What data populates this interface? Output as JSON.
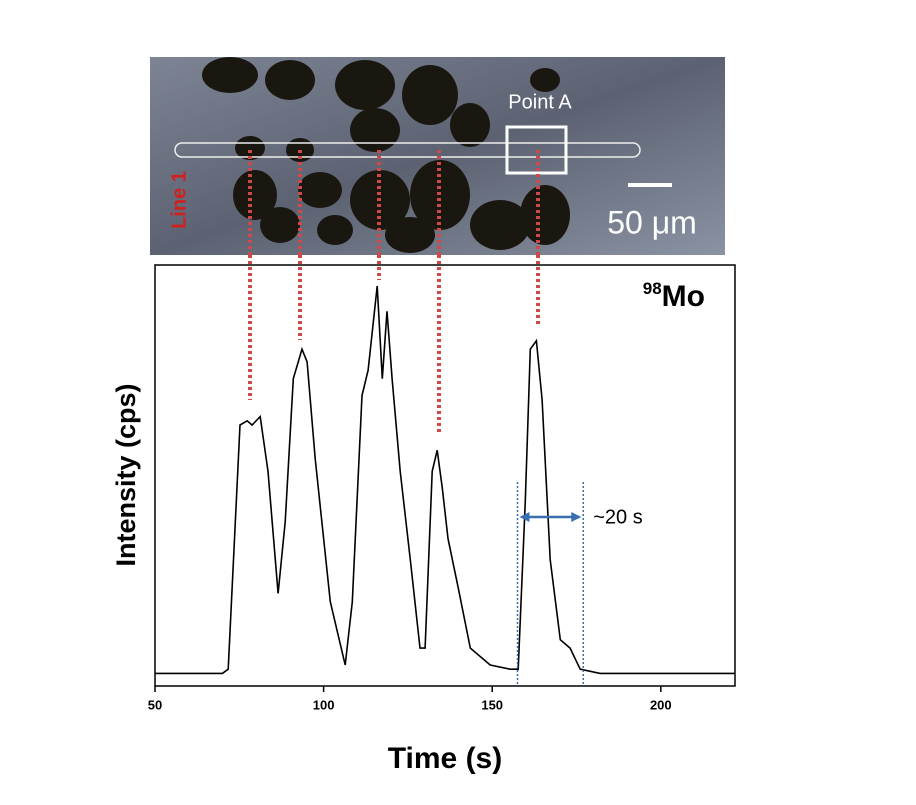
{
  "micrograph": {
    "point_label": "Point A",
    "line_label": "Line 1",
    "scale_bar": "50 μm"
  },
  "chart_data": {
    "type": "line",
    "x_label": "Time (s)",
    "y_label": "Intensity (cps)",
    "annotations": {
      "isotope_mass": "98",
      "isotope_element": "Mo",
      "width": "~20 s"
    },
    "x": [
      50,
      60,
      70,
      71.7,
      75.2,
      77.3,
      78.8,
      81.2,
      83.5,
      86.5,
      88.6,
      91,
      93.6,
      95.1,
      97.5,
      102,
      106.4,
      108.5,
      111.4,
      113.2,
      115.9,
      117.4,
      118.8,
      120.3,
      122.7,
      125.7,
      128.6,
      130.1,
      132.2,
      133.7,
      135.2,
      136.9,
      140,
      143.5,
      149.4,
      155.3,
      157.7,
      159.8,
      161.3,
      163.1,
      164.8,
      167.2,
      170.2,
      173.1,
      176.1,
      182,
      200,
      222
    ],
    "values": [
      3,
      3,
      3,
      4,
      62,
      63,
      62,
      64,
      51,
      22,
      39,
      73,
      80,
      77,
      54,
      20,
      5,
      20,
      69,
      75,
      95,
      73,
      89,
      73,
      51,
      30,
      9,
      9,
      51,
      56,
      47,
      35,
      23,
      9,
      5,
      4,
      4,
      44,
      80,
      82,
      68,
      30,
      11,
      9,
      4,
      3,
      3,
      3
    ],
    "color": "#000000",
    "markers_x": [
      157.5,
      177
    ],
    "marker_color": "#3a6fb0",
    "xlim": [
      50,
      222
    ],
    "ylim": [
      0,
      100
    ],
    "xticks": [
      50,
      100,
      150,
      200
    ]
  }
}
